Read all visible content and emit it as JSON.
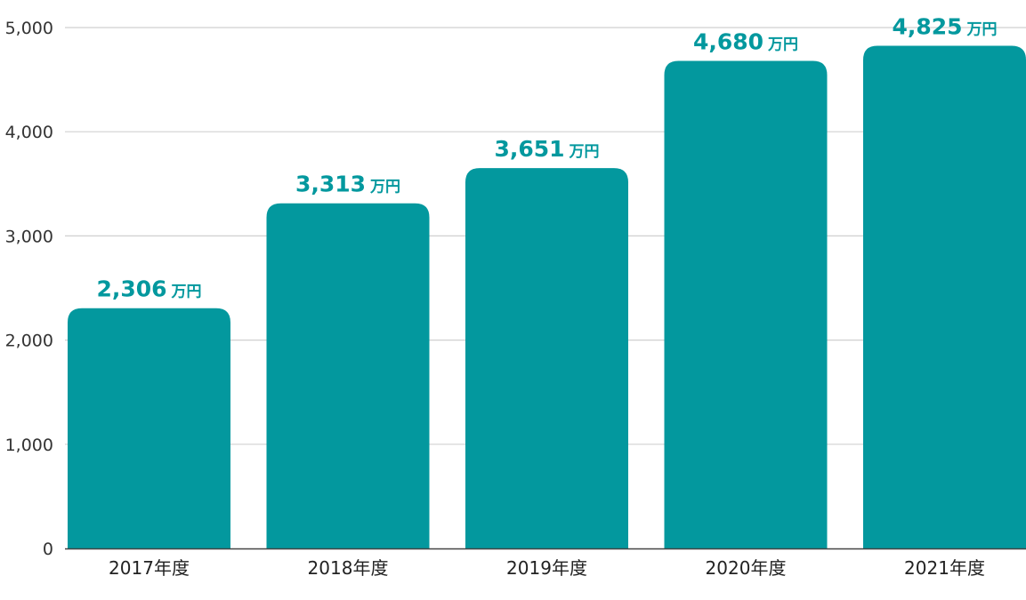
{
  "chart_data": {
    "type": "bar",
    "categories": [
      "2017年度",
      "2018年度",
      "2019年度",
      "2020年度",
      "2021年度"
    ],
    "values": [
      2306,
      3313,
      3651,
      4680,
      4825
    ],
    "value_labels": [
      "2,306",
      "3,313",
      "3,651",
      "4,680",
      "4,825"
    ],
    "value_unit": "万円",
    "title": "",
    "xlabel": "",
    "ylabel": "",
    "ylim": [
      0,
      5000
    ],
    "yticks": [
      0,
      1000,
      2000,
      3000,
      4000,
      5000
    ],
    "ytick_labels": [
      "0",
      "1,000",
      "2,000",
      "3,000",
      "4,000",
      "5,000"
    ],
    "grid": true,
    "legend": "none"
  },
  "colors": {
    "bar": "#03989e",
    "value_label": "#03989e",
    "grid": "#d0d0d0",
    "axis": "#444444"
  }
}
